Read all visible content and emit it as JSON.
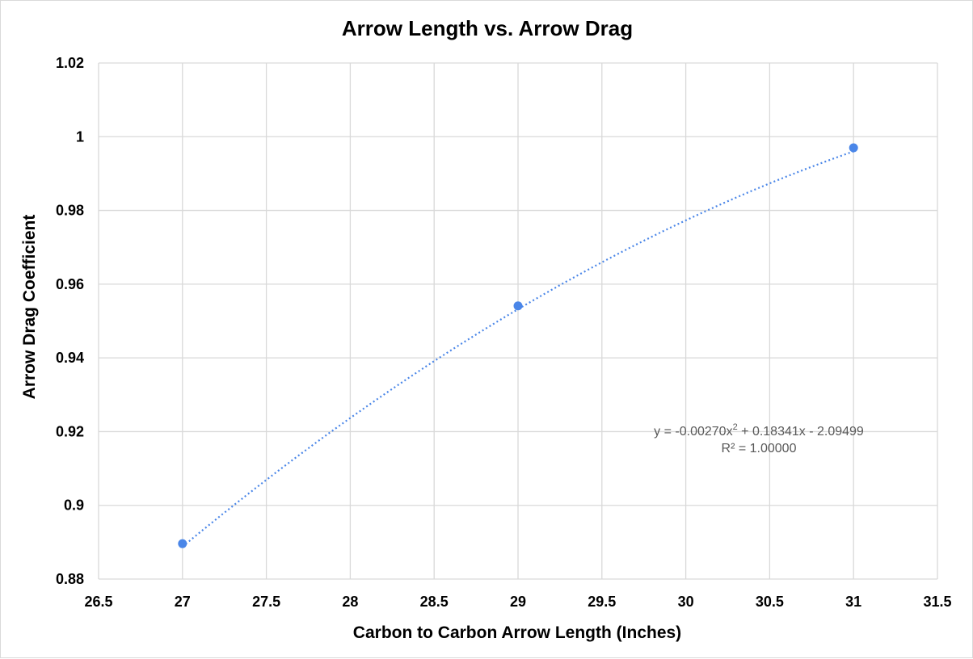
{
  "chart_data": {
    "type": "scatter",
    "title": "Arrow Length vs. Arrow Drag",
    "xlabel": "Carbon to Carbon Arrow Length (Inches)",
    "ylabel": "Arrow Drag Coefficient",
    "xlim": [
      26.5,
      31.5
    ],
    "ylim": [
      0.88,
      1.02
    ],
    "x_ticks": [
      "26.5",
      "27",
      "27.5",
      "28",
      "28.5",
      "29",
      "29.5",
      "30",
      "30.5",
      "31",
      "31.5"
    ],
    "y_ticks": [
      "0.88",
      "0.9",
      "0.92",
      "0.94",
      "0.96",
      "0.98",
      "1",
      "1.02"
    ],
    "grid": true,
    "legend": "none",
    "series": [
      {
        "x": [
          27,
          29,
          31
        ],
        "y": [
          0.8896,
          0.9541,
          0.997
        ],
        "color": "#4a86e8"
      }
    ],
    "trendline": {
      "type": "polynomial",
      "order": 2,
      "coefficients": [
        -0.0027,
        0.18341,
        -2.09499
      ],
      "color": "#4a86e8",
      "equation_prefix": "y = -0.00270x",
      "equation_exponent": "2",
      "equation_suffix": " + 0.18341x - 2.09499",
      "r_squared": "R² = 1.00000"
    }
  }
}
